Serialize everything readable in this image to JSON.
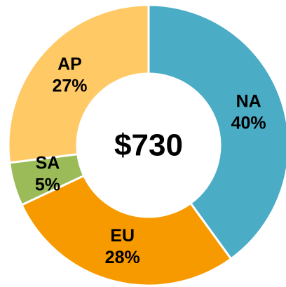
{
  "chart_data": {
    "type": "donut",
    "center_label": "$730",
    "categories": [
      "NA",
      "EU",
      "SA",
      "AP"
    ],
    "values": [
      40,
      28,
      5,
      27
    ],
    "value_labels": [
      "40%",
      "28%",
      "5%",
      "27%"
    ],
    "colors": [
      "#4bacc6",
      "#f79a00",
      "#9bbb59",
      "#ffc966"
    ]
  }
}
